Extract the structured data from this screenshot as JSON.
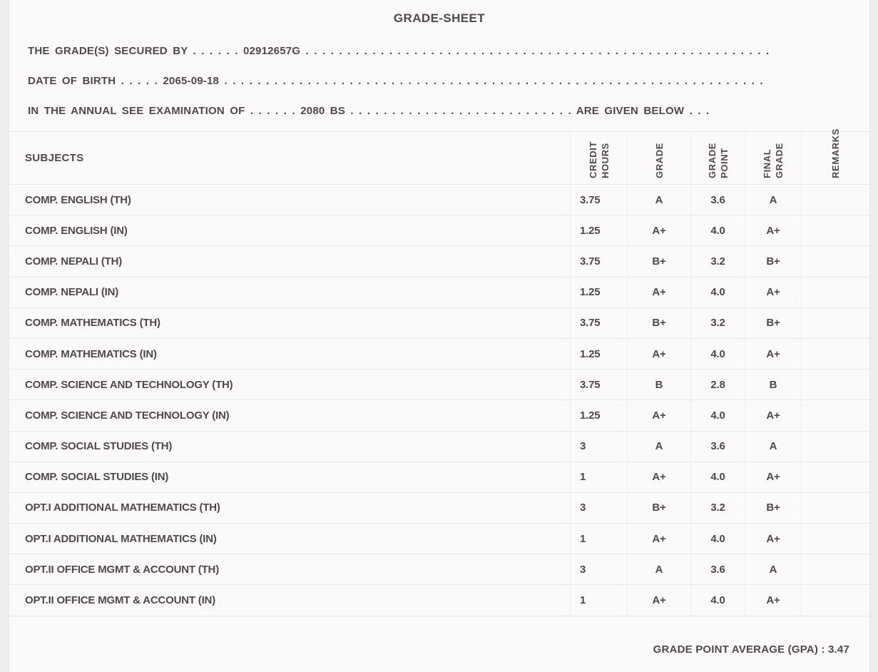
{
  "page": {
    "background": "#efeeec",
    "card_background": "#fbfaf9",
    "text_color": "#4d4a47",
    "horizontal_border_color": "#eae8e6",
    "vertical_border_color": "#f1efed"
  },
  "header": {
    "title": "GRADE-SHEET"
  },
  "info": {
    "grades_secured": {
      "label": "THE GRADE(S) SECURED BY",
      "leader": " . . . . . . ",
      "value": "02912657G",
      "trailer": " . . . . . . . . . . . . . . . . . . . . . . . . . . . . . . . . . . . . . . . . . . . . . . . . . . . . . . . . . . . . . . . ."
    },
    "date_of_birth": {
      "label": "DATE OF BIRTH",
      "leader": " . . . . . ",
      "value": "2065-09-18",
      "trailer": " . . . . . . . . . . . . . . . . . . . . . . . . . . . . . . . . . . . . . . . . . . . . . . . . . . . . . . . . . . . . . . . . . . . . . . . ."
    },
    "examination": {
      "label": "IN THE ANNUAL SEE EXAMINATION OF",
      "leader": " . . . . . . ",
      "value": "2080 BS",
      "mid": " . . . . . . . . . . . . . . . . . . . . . . . . . . . ",
      "suffix": "ARE GIVEN BELOW",
      "trailer": " . . ."
    }
  },
  "table": {
    "headers": {
      "subjects": "SUBJECTS",
      "credit_hours": "CREDIT\nHOURS",
      "grade": "GRADE",
      "grade_point": "GRADE\nPOINT",
      "final_grade": "FINAL\nGRADE",
      "remarks": "REMARKS"
    },
    "rows": [
      {
        "subject": "COMP. ENGLISH (TH)",
        "credit_hours": "3.75",
        "grade": "A",
        "grade_point": "3.6",
        "final_grade": "A",
        "remarks": ""
      },
      {
        "subject": "COMP. ENGLISH (IN)",
        "credit_hours": "1.25",
        "grade": "A+",
        "grade_point": "4.0",
        "final_grade": "A+",
        "remarks": ""
      },
      {
        "subject": "COMP. NEPALI (TH)",
        "credit_hours": "3.75",
        "grade": "B+",
        "grade_point": "3.2",
        "final_grade": "B+",
        "remarks": ""
      },
      {
        "subject": "COMP. NEPALI (IN)",
        "credit_hours": "1.25",
        "grade": "A+",
        "grade_point": "4.0",
        "final_grade": "A+",
        "remarks": ""
      },
      {
        "subject": "COMP. MATHEMATICS (TH)",
        "credit_hours": "3.75",
        "grade": "B+",
        "grade_point": "3.2",
        "final_grade": "B+",
        "remarks": ""
      },
      {
        "subject": "COMP. MATHEMATICS (IN)",
        "credit_hours": "1.25",
        "grade": "A+",
        "grade_point": "4.0",
        "final_grade": "A+",
        "remarks": ""
      },
      {
        "subject": "COMP. SCIENCE AND TECHNOLOGY (TH)",
        "credit_hours": "3.75",
        "grade": "B",
        "grade_point": "2.8",
        "final_grade": "B",
        "remarks": ""
      },
      {
        "subject": "COMP. SCIENCE AND TECHNOLOGY (IN)",
        "credit_hours": "1.25",
        "grade": "A+",
        "grade_point": "4.0",
        "final_grade": "A+",
        "remarks": ""
      },
      {
        "subject": "COMP. SOCIAL STUDIES (TH)",
        "credit_hours": "3",
        "grade": "A",
        "grade_point": "3.6",
        "final_grade": "A",
        "remarks": ""
      },
      {
        "subject": "COMP. SOCIAL STUDIES (IN)",
        "credit_hours": "1",
        "grade": "A+",
        "grade_point": "4.0",
        "final_grade": "A+",
        "remarks": ""
      },
      {
        "subject": "OPT.I ADDITIONAL MATHEMATICS (TH)",
        "credit_hours": "3",
        "grade": "B+",
        "grade_point": "3.2",
        "final_grade": "B+",
        "remarks": ""
      },
      {
        "subject": "OPT.I ADDITIONAL MATHEMATICS (IN)",
        "credit_hours": "1",
        "grade": "A+",
        "grade_point": "4.0",
        "final_grade": "A+",
        "remarks": ""
      },
      {
        "subject": "OPT.II OFFICE MGMT & ACCOUNT (TH)",
        "credit_hours": "3",
        "grade": "A",
        "grade_point": "3.6",
        "final_grade": "A",
        "remarks": ""
      },
      {
        "subject": "OPT.II OFFICE MGMT & ACCOUNT (IN)",
        "credit_hours": "1",
        "grade": "A+",
        "grade_point": "4.0",
        "final_grade": "A+",
        "remarks": ""
      }
    ]
  },
  "footer": {
    "gpa_label": "GRADE POINT AVERAGE (GPA) : ",
    "gpa_value": "3.47"
  }
}
